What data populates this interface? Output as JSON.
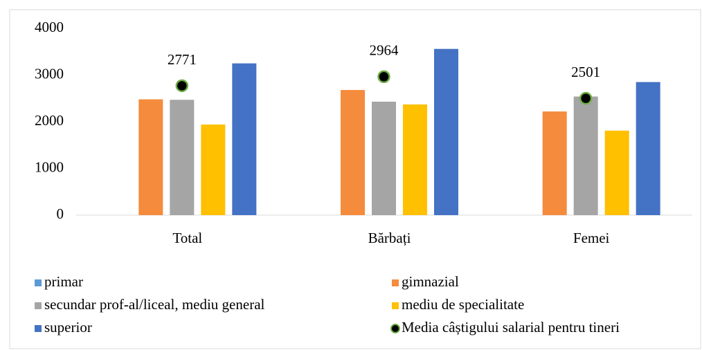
{
  "chart_data": {
    "type": "bar",
    "categories": [
      "Total",
      "Bărbați",
      "Femei"
    ],
    "series": [
      {
        "name": "primar",
        "color": "#5b9bd5",
        "values": [
          null,
          null,
          null
        ]
      },
      {
        "name": "gimnazial",
        "color": "#f58b3c",
        "values": [
          2480,
          2680,
          2220
        ]
      },
      {
        "name": "secundar prof-al/liceal, mediu general",
        "color": "#a5a5a5",
        "values": [
          2470,
          2430,
          2540
        ]
      },
      {
        "name": "mediu de specialitate",
        "color": "#ffc000",
        "values": [
          1940,
          2370,
          1810
        ]
      },
      {
        "name": "superior",
        "color": "#4472c4",
        "values": [
          3250,
          3560,
          2850
        ]
      },
      {
        "name": "Media câștigului salarial pentru tineri",
        "color": "#000000",
        "edgecolor": "#70ad47",
        "style": "marker",
        "values": [
          2771,
          2964,
          2501
        ]
      }
    ],
    "ylim": [
      0,
      4000
    ],
    "yticks": [
      0,
      1000,
      2000,
      3000,
      4000
    ],
    "grid": false,
    "legend": "bottom"
  }
}
